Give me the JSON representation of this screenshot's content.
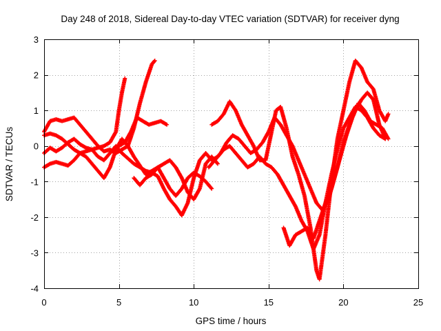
{
  "chart_data": {
    "type": "scatter",
    "title": "Day 248 of 2018, Sidereal Day-to-day VTEC variation (SDTVAR) for receiver dyng",
    "xlabel": "GPS time / hours",
    "ylabel": "SDTVAR / TECUs",
    "xlim": [
      0,
      25
    ],
    "ylim": [
      -4,
      3
    ],
    "xticks": [
      "0",
      "5",
      "10",
      "15",
      "20",
      "25"
    ],
    "yticks": [
      "-4",
      "-3",
      "-2",
      "-1",
      "0",
      "1",
      "2",
      "3"
    ],
    "grid": true,
    "marker": "+",
    "color": "#ff0000",
    "series": [
      {
        "points": [
          [
            0,
            0.3
          ],
          [
            0.4,
            0.35
          ],
          [
            0.8,
            0.3
          ],
          [
            1.2,
            0.2
          ],
          [
            1.6,
            0.05
          ],
          [
            2.0,
            -0.1
          ],
          [
            2.4,
            -0.2
          ],
          [
            2.8,
            -0.3
          ],
          [
            3.2,
            -0.5
          ],
          [
            3.6,
            -0.7
          ],
          [
            4.0,
            -0.9
          ],
          [
            4.4,
            -0.6
          ],
          [
            4.8,
            -0.1
          ],
          [
            5.2,
            0.2
          ],
          [
            5.6,
            0.0
          ],
          [
            6.0,
            -0.3
          ],
          [
            6.4,
            -0.55
          ],
          [
            6.8,
            -0.8
          ],
          [
            7.2,
            -0.7
          ],
          [
            7.6,
            -0.6
          ],
          [
            8.0,
            -0.9
          ],
          [
            8.4,
            -1.2
          ],
          [
            8.8,
            -1.4
          ],
          [
            9.2,
            -1.2
          ],
          [
            9.6,
            -0.9
          ],
          [
            10.0,
            -0.75
          ],
          [
            10.4,
            -0.85
          ],
          [
            10.8,
            -1.0
          ],
          [
            11.2,
            -1.2
          ]
        ]
      },
      {
        "points": [
          [
            0,
            -0.2
          ],
          [
            0.4,
            -0.05
          ],
          [
            0.8,
            -0.15
          ],
          [
            1.2,
            -0.05
          ],
          [
            1.6,
            0.1
          ],
          [
            2.0,
            0.2
          ],
          [
            2.4,
            0.05
          ],
          [
            2.8,
            -0.05
          ],
          [
            3.2,
            -0.1
          ],
          [
            3.6,
            -0.3
          ],
          [
            4.0,
            -0.4
          ],
          [
            4.4,
            -0.2
          ],
          [
            4.8,
            0.0
          ],
          [
            5.2,
            -0.2
          ],
          [
            5.6,
            -0.35
          ],
          [
            6.0,
            -0.5
          ],
          [
            6.4,
            -0.6
          ],
          [
            6.8,
            -0.7
          ],
          [
            7.2,
            -0.75
          ],
          [
            7.6,
            -0.85
          ],
          [
            8.0,
            -1.2
          ],
          [
            8.4,
            -1.5
          ],
          [
            8.8,
            -1.7
          ],
          [
            9.2,
            -1.95
          ],
          [
            9.6,
            -1.6
          ],
          [
            10.0,
            -0.9
          ],
          [
            10.4,
            -0.4
          ],
          [
            10.8,
            -0.2
          ],
          [
            11.2,
            -0.4
          ],
          [
            11.6,
            -0.3
          ],
          [
            12.0,
            -0.1
          ],
          [
            12.4,
            0.0
          ],
          [
            12.8,
            -0.2
          ],
          [
            13.2,
            -0.4
          ],
          [
            13.6,
            -0.6
          ],
          [
            14.0,
            -0.5
          ],
          [
            14.4,
            -0.3
          ],
          [
            14.8,
            -0.5
          ],
          [
            15.2,
            -0.6
          ],
          [
            15.6,
            -0.8
          ],
          [
            16.0,
            -1.1
          ],
          [
            16.4,
            -1.4
          ],
          [
            16.8,
            -1.7
          ],
          [
            17.2,
            -2.1
          ],
          [
            17.6,
            -2.4
          ],
          [
            18.0,
            -2.9
          ],
          [
            18.4,
            -2.5
          ],
          [
            18.8,
            -1.6
          ],
          [
            19.2,
            -0.8
          ],
          [
            19.6,
            -0.1
          ],
          [
            20.0,
            0.5
          ],
          [
            20.4,
            0.8
          ],
          [
            20.8,
            1.1
          ],
          [
            21.2,
            1.0
          ],
          [
            21.6,
            0.8
          ],
          [
            22.0,
            0.5
          ],
          [
            22.4,
            0.3
          ],
          [
            22.8,
            0.2
          ]
        ]
      },
      {
        "points": [
          [
            0,
            -0.6
          ],
          [
            0.4,
            -0.5
          ],
          [
            0.8,
            -0.45
          ],
          [
            1.2,
            -0.5
          ],
          [
            1.6,
            -0.55
          ],
          [
            2.0,
            -0.4
          ],
          [
            2.4,
            -0.2
          ],
          [
            2.8,
            -0.15
          ],
          [
            3.2,
            -0.1
          ],
          [
            3.6,
            -0.05
          ],
          [
            4.0,
            0.0
          ],
          [
            4.4,
            0.1
          ],
          [
            4.8,
            0.4
          ],
          [
            5.0,
            1.0
          ],
          [
            5.2,
            1.5
          ],
          [
            5.4,
            1.9
          ]
        ]
      },
      {
        "points": [
          [
            0,
            0.4
          ],
          [
            0.4,
            0.7
          ],
          [
            0.8,
            0.75
          ],
          [
            1.2,
            0.7
          ],
          [
            1.6,
            0.75
          ],
          [
            2.0,
            0.8
          ],
          [
            2.4,
            0.6
          ],
          [
            2.8,
            0.4
          ],
          [
            3.2,
            0.2
          ],
          [
            3.6,
            0.0
          ],
          [
            4.0,
            -0.15
          ],
          [
            4.4,
            -0.1
          ],
          [
            4.8,
            -0.2
          ],
          [
            5.2,
            -0.1
          ],
          [
            5.6,
            0.0
          ],
          [
            6.0,
            0.5
          ],
          [
            6.4,
            1.2
          ],
          [
            6.8,
            1.8
          ],
          [
            7.2,
            2.3
          ],
          [
            7.4,
            2.4
          ]
        ]
      },
      {
        "points": [
          [
            5.0,
            0.0
          ],
          [
            5.4,
            0.1
          ],
          [
            5.8,
            0.4
          ],
          [
            6.2,
            0.8
          ],
          [
            6.6,
            0.7
          ],
          [
            7.0,
            0.6
          ],
          [
            7.4,
            0.65
          ],
          [
            7.8,
            0.7
          ],
          [
            8.2,
            0.6
          ]
        ]
      },
      {
        "points": [
          [
            6.0,
            -0.9
          ],
          [
            6.4,
            -1.1
          ],
          [
            6.8,
            -0.9
          ],
          [
            7.2,
            -0.8
          ],
          [
            7.6,
            -0.6
          ],
          [
            8.0,
            -0.5
          ],
          [
            8.4,
            -0.4
          ],
          [
            8.8,
            -0.6
          ],
          [
            9.2,
            -0.9
          ],
          [
            9.6,
            -1.3
          ],
          [
            10.0,
            -1.5
          ],
          [
            10.4,
            -1.2
          ],
          [
            10.8,
            -0.5
          ],
          [
            11.2,
            -0.3
          ],
          [
            11.6,
            -0.5
          ]
        ]
      },
      {
        "points": [
          [
            11.0,
            -0.6
          ],
          [
            11.4,
            -0.4
          ],
          [
            11.8,
            -0.2
          ],
          [
            12.2,
            0.1
          ],
          [
            12.6,
            0.3
          ],
          [
            13.0,
            0.2
          ],
          [
            13.4,
            0.0
          ],
          [
            13.8,
            -0.2
          ],
          [
            14.2,
            -0.1
          ],
          [
            14.6,
            0.1
          ],
          [
            15.0,
            0.4
          ],
          [
            15.4,
            0.8
          ],
          [
            15.8,
            0.6
          ],
          [
            16.2,
            0.3
          ],
          [
            16.6,
            0.0
          ],
          [
            17.0,
            -0.4
          ],
          [
            17.4,
            -0.8
          ],
          [
            17.8,
            -1.2
          ],
          [
            18.2,
            -1.6
          ],
          [
            18.6,
            -1.8
          ],
          [
            19.0,
            -1.5
          ],
          [
            19.4,
            -0.9
          ],
          [
            19.8,
            -0.3
          ],
          [
            20.2,
            0.3
          ],
          [
            20.6,
            0.8
          ],
          [
            21.0,
            1.2
          ],
          [
            21.4,
            1.0
          ],
          [
            21.8,
            0.7
          ],
          [
            22.2,
            0.6
          ],
          [
            22.6,
            0.5
          ],
          [
            23.0,
            0.2
          ]
        ]
      },
      {
        "points": [
          [
            11.2,
            0.6
          ],
          [
            11.6,
            0.7
          ],
          [
            12.0,
            0.9
          ],
          [
            12.4,
            1.25
          ],
          [
            12.8,
            1.0
          ],
          [
            13.2,
            0.6
          ],
          [
            13.6,
            0.3
          ],
          [
            14.0,
            0.0
          ],
          [
            14.4,
            -0.4
          ],
          [
            14.8,
            -0.4
          ],
          [
            15.2,
            0.4
          ],
          [
            15.5,
            1.0
          ],
          [
            15.8,
            1.1
          ],
          [
            16.2,
            0.5
          ],
          [
            16.6,
            -0.3
          ],
          [
            17.0,
            -0.8
          ],
          [
            17.4,
            -1.4
          ],
          [
            17.8,
            -2.3
          ],
          [
            18.2,
            -3.5
          ],
          [
            18.4,
            -3.75
          ],
          [
            18.8,
            -2.5
          ],
          [
            19.2,
            -1.0
          ],
          [
            19.6,
            0.2
          ],
          [
            20.0,
            1.0
          ],
          [
            20.4,
            1.8
          ],
          [
            20.8,
            2.4
          ],
          [
            21.2,
            2.2
          ],
          [
            21.6,
            1.8
          ],
          [
            22.0,
            1.6
          ],
          [
            22.4,
            1.0
          ],
          [
            22.8,
            0.7
          ],
          [
            23.0,
            0.9
          ]
        ]
      },
      {
        "points": [
          [
            16.0,
            -2.3
          ],
          [
            16.4,
            -2.8
          ],
          [
            16.8,
            -2.5
          ],
          [
            17.2,
            -2.4
          ],
          [
            17.6,
            -2.3
          ],
          [
            18.0,
            -2.6
          ],
          [
            18.4,
            -2.1
          ],
          [
            18.8,
            -1.6
          ],
          [
            19.2,
            -1.2
          ],
          [
            19.6,
            -0.6
          ],
          [
            20.0,
            0.1
          ],
          [
            20.4,
            0.6
          ],
          [
            20.8,
            1.0
          ],
          [
            21.2,
            1.3
          ],
          [
            21.6,
            1.5
          ],
          [
            22.0,
            1.3
          ],
          [
            22.4,
            0.6
          ],
          [
            22.8,
            0.2
          ]
        ]
      }
    ]
  }
}
